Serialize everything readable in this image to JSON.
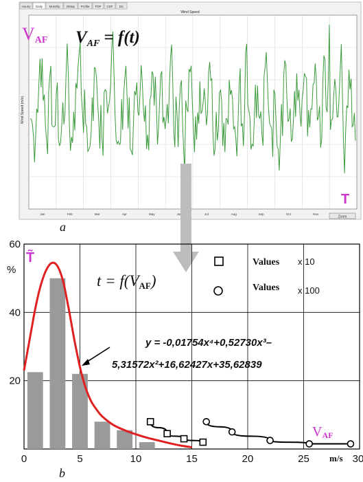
{
  "tabs": [
    "Hourly",
    "Daily",
    "Monthly",
    "DMap",
    "Profile",
    "PDF",
    "CDF",
    "DC"
  ],
  "chart_data": [
    {
      "type": "line",
      "panel_label": "a",
      "title": "Wind Speed",
      "ylabel": "Wind Speed (m/s)",
      "months": [
        "Jan",
        "Feb",
        "Mar",
        "Apr",
        "May",
        "Jun",
        "Jul",
        "Aug",
        "Sep",
        "Oct",
        "Nov",
        "Dec"
      ],
      "formula": "V_AF = f(t)",
      "formula_lhs": "V",
      "formula_sub": "AF",
      "formula_rhs": "= f(t)",
      "corner_label_main": "V",
      "corner_label_sub": "AF",
      "end_label": "T",
      "zoom_button": "Zoom",
      "series_color": "#3a9a3a",
      "series": [
        {
          "values": [
            5.6,
            4.5,
            6.2,
            9.3,
            6.7,
            4.3,
            8.2,
            5.1,
            7.1,
            3.9,
            6.6,
            8.4,
            5.2,
            4.1,
            7.8,
            9.6,
            6.1,
            5.3,
            3.7,
            6.9,
            8.7,
            5.5,
            4.4,
            7.4,
            6.3,
            9.9,
            5.8,
            4.2,
            6.8,
            8.1,
            5.0,
            3.6,
            7.3,
            6.0,
            8.9,
            5.4,
            4.6,
            7.0,
            6.4,
            4.0,
            8.3,
            5.7,
            6.5,
            9.4,
            4.8,
            5.9,
            7.6,
            3.8,
            6.2,
            8.5,
            5.1,
            4.3,
            7.9,
            6.6,
            5.2,
            9.1,
            4.7,
            6.0,
            7.2,
            3.9,
            5.6,
            8.0,
            6.8,
            4.4,
            7.5,
            5.3,
            9.7,
            6.1,
            4.0,
            7.7,
            5.8,
            4.6,
            8.8,
            6.3,
            5.0,
            7.1,
            3.7,
            6.5,
            9.2,
            5.4,
            4.2,
            7.3,
            6.7,
            5.1,
            8.4,
            4.5,
            6.2,
            7.8,
            5.5,
            3.8,
            9.5,
            6.0,
            4.9,
            7.0,
            5.7,
            8.6,
            4.1,
            6.4,
            7.4,
            5.2
          ],
          "raw_note_ignore": ""
        }
      ]
    },
    {
      "type": "bar",
      "panel_label": "b",
      "formula_main": "t = f(V",
      "formula_sub": "AF",
      "formula_close": ")",
      "ylabel": "%",
      "ytitle": "T̃",
      "xlabel": "m/s",
      "x_ticks": [
        "0",
        "5",
        "10",
        "15",
        "20",
        "25",
        "30"
      ],
      "y_ticks": [
        "20",
        "40",
        "60"
      ],
      "xlim": [
        0,
        30
      ],
      "ylim": [
        0,
        60
      ],
      "corner_label_main": "V",
      "corner_label_sub": "AF",
      "equation_line1": "y = -0,01754x⁴+0,52730x³–",
      "equation_line2": "5,31572x²+16,62427x+35,6283​9",
      "legend": [
        {
          "marker": "square",
          "label": "Values",
          "factor": "x 10"
        },
        {
          "marker": "circle",
          "label": "Values",
          "factor": "x 100"
        }
      ],
      "bar_color": "#9a9a9a",
      "curve_color": "#e02020",
      "bars": {
        "x": [
          1,
          3,
          5,
          7,
          9,
          11
        ],
        "values": [
          22.5,
          50,
          22,
          8,
          5.5,
          2
        ]
      },
      "fit_curve": {
        "x": [
          0,
          0.5,
          1,
          1.5,
          2,
          2.5,
          3,
          3.5,
          4,
          4.5,
          5,
          5.5,
          6,
          6.5,
          7,
          8,
          9,
          10,
          11,
          12,
          13,
          14,
          15
        ],
        "y": [
          23,
          32,
          41,
          48,
          52.5,
          54.5,
          53.5,
          49,
          41,
          32,
          24,
          18,
          14,
          11.5,
          9.5,
          7,
          5.5,
          4.3,
          3.3,
          2.5,
          1.7,
          1.0,
          0.5
        ]
      },
      "series": [
        {
          "marker": "square",
          "x": [
            11.3,
            12.8,
            14.3,
            16
          ],
          "y": [
            8,
            4.5,
            3,
            2
          ]
        },
        {
          "marker": "circle",
          "x": [
            16.3,
            18.6,
            22,
            25.5,
            29.2
          ],
          "y": [
            8,
            5,
            2.5,
            1.5,
            1.5
          ]
        }
      ]
    }
  ]
}
